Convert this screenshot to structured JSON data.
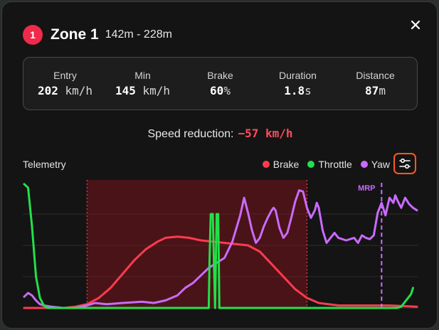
{
  "header": {
    "badge": "1",
    "title": "Zone 1",
    "range": "142m - 228m"
  },
  "stats": [
    {
      "label": "Entry",
      "value": "202",
      "unit": " km/h"
    },
    {
      "label": "Min",
      "value": "145",
      "unit": " km/h"
    },
    {
      "label": "Brake",
      "value": "60",
      "unit": "%"
    },
    {
      "label": "Duration",
      "value": "1.8",
      "unit": "s"
    },
    {
      "label": "Distance",
      "value": "87",
      "unit": "m"
    }
  ],
  "summary": {
    "label": "Speed reduction:",
    "value": "−57 km/h"
  },
  "telemetry": {
    "label": "Telemetry",
    "legend": [
      {
        "name": "Brake",
        "color": "#ff3b4f"
      },
      {
        "name": "Throttle",
        "color": "#22e04a"
      },
      {
        "name": "Yaw",
        "color": "#c96bff"
      }
    ],
    "settings_icon": "sliders-icon",
    "close_icon": "close-icon"
  },
  "chart_data": {
    "type": "line",
    "x_range": [
      0,
      100
    ],
    "y_range": [
      0,
      100
    ],
    "zone_x": [
      16,
      72
    ],
    "marker": {
      "label": "MRP",
      "x": 91
    },
    "series": [
      {
        "name": "Brake",
        "color": "#ff3b4f",
        "points": [
          [
            0,
            0
          ],
          [
            10,
            0
          ],
          [
            13,
            1
          ],
          [
            16,
            3
          ],
          [
            19,
            8
          ],
          [
            22,
            16
          ],
          [
            25,
            27
          ],
          [
            28,
            38
          ],
          [
            31,
            47
          ],
          [
            34,
            53
          ],
          [
            36,
            56
          ],
          [
            39,
            57
          ],
          [
            42,
            56
          ],
          [
            45,
            54
          ],
          [
            48,
            53
          ],
          [
            51,
            52
          ],
          [
            54,
            51
          ],
          [
            57,
            50
          ],
          [
            60,
            45
          ],
          [
            63,
            35
          ],
          [
            66,
            25
          ],
          [
            69,
            15
          ],
          [
            72,
            8
          ],
          [
            75,
            4
          ],
          [
            80,
            2
          ],
          [
            88,
            2
          ],
          [
            93,
            2
          ],
          [
            100,
            1
          ]
        ]
      },
      {
        "name": "Throttle",
        "color": "#22e04a",
        "points": [
          [
            0,
            99
          ],
          [
            1,
            96
          ],
          [
            2,
            65
          ],
          [
            3,
            25
          ],
          [
            4,
            8
          ],
          [
            5,
            2
          ],
          [
            6,
            0
          ],
          [
            47,
            0
          ],
          [
            47.2,
            38
          ],
          [
            47.5,
            75
          ],
          [
            48,
            75
          ],
          [
            48.3,
            38
          ],
          [
            48.6,
            0
          ],
          [
            49,
            75
          ],
          [
            49.4,
            75
          ],
          [
            49.7,
            0
          ],
          [
            95,
            0
          ],
          [
            96,
            1
          ],
          [
            97,
            5
          ],
          [
            98.5,
            11
          ],
          [
            99,
            16
          ]
        ]
      },
      {
        "name": "Yaw",
        "color": "#c96bff",
        "points": [
          [
            0,
            9
          ],
          [
            1,
            12
          ],
          [
            2,
            10
          ],
          [
            3,
            6
          ],
          [
            4,
            3
          ],
          [
            5,
            2
          ],
          [
            7,
            1
          ],
          [
            10,
            0
          ],
          [
            13,
            0
          ],
          [
            16,
            2
          ],
          [
            18,
            4
          ],
          [
            21,
            3
          ],
          [
            25,
            4
          ],
          [
            30,
            5
          ],
          [
            33,
            4
          ],
          [
            36,
            6
          ],
          [
            39,
            10
          ],
          [
            41,
            16
          ],
          [
            43,
            20
          ],
          [
            45,
            26
          ],
          [
            47,
            32
          ],
          [
            49,
            36
          ],
          [
            51,
            40
          ],
          [
            53,
            53
          ],
          [
            55,
            74
          ],
          [
            56,
            88
          ],
          [
            57,
            76
          ],
          [
            58,
            62
          ],
          [
            59,
            52
          ],
          [
            60,
            56
          ],
          [
            61,
            65
          ],
          [
            62,
            72
          ],
          [
            63,
            78
          ],
          [
            63.5,
            80
          ],
          [
            64,
            78
          ],
          [
            65,
            64
          ],
          [
            66,
            56
          ],
          [
            67,
            60
          ],
          [
            68,
            72
          ],
          [
            69,
            85
          ],
          [
            70,
            94
          ],
          [
            71,
            93
          ],
          [
            72,
            80
          ],
          [
            73,
            72
          ],
          [
            74,
            78
          ],
          [
            74.5,
            84
          ],
          [
            75,
            80
          ],
          [
            76,
            62
          ],
          [
            77,
            52
          ],
          [
            78,
            56
          ],
          [
            79,
            60
          ],
          [
            80,
            56
          ],
          [
            82,
            54
          ],
          [
            84,
            56
          ],
          [
            85,
            52
          ],
          [
            86,
            58
          ],
          [
            87,
            56
          ],
          [
            88,
            55
          ],
          [
            89,
            58
          ],
          [
            90,
            76
          ],
          [
            91,
            84
          ],
          [
            92,
            74
          ],
          [
            93,
            88
          ],
          [
            94,
            84
          ],
          [
            94.5,
            90
          ],
          [
            95,
            86
          ],
          [
            96,
            80
          ],
          [
            97,
            88
          ],
          [
            98,
            83
          ],
          [
            99,
            80
          ],
          [
            100,
            78
          ]
        ]
      }
    ]
  }
}
